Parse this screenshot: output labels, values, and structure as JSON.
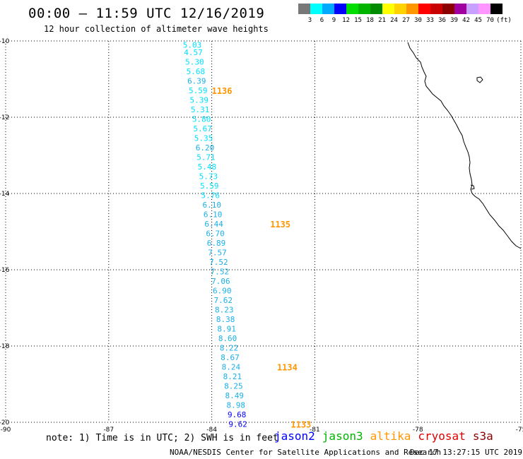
{
  "header": {
    "title": "00:00 — 11:59 UTC 12/16/2019",
    "subtitle": "12 hour collection of altimeter wave heights"
  },
  "legend": {
    "unit": "(ft)",
    "bins": [
      {
        "label": "3",
        "color": "#787878"
      },
      {
        "label": "6",
        "color": "#00ffff"
      },
      {
        "label": "9",
        "color": "#00aaff"
      },
      {
        "label": "12",
        "color": "#0000ff"
      },
      {
        "label": "15",
        "color": "#00dd00"
      },
      {
        "label": "18",
        "color": "#00b400"
      },
      {
        "label": "21",
        "color": "#008c00"
      },
      {
        "label": "24",
        "color": "#ffff00"
      },
      {
        "label": "27",
        "color": "#ffd200"
      },
      {
        "label": "30",
        "color": "#ff9600"
      },
      {
        "label": "33",
        "color": "#ff0000"
      },
      {
        "label": "36",
        "color": "#c80000"
      },
      {
        "label": "39",
        "color": "#8c0000"
      },
      {
        "label": "42",
        "color": "#a000a0"
      },
      {
        "label": "45",
        "color": "#c8a0ff"
      },
      {
        "label": "70",
        "color": "#ff96ff"
      },
      {
        "label": "",
        "color": "#000000"
      }
    ]
  },
  "map": {
    "lon_range": [
      -90,
      -75
    ],
    "lat_range": [
      -20,
      -10
    ],
    "x_ticks": [
      "-90",
      "-87",
      "-84",
      "-81",
      "-78",
      "-75"
    ],
    "y_ticks": [
      "-10",
      "-12",
      "-14",
      "-16",
      "-18",
      "-20"
    ]
  },
  "chart_data": {
    "type": "scatter",
    "series_color_cyan": "#00e0ff",
    "series_color_mid": "#1ab0e8",
    "series_color_blue": "#0000ff",
    "points": [
      {
        "lon": -84.65,
        "lat": -10.1,
        "value": "5.03",
        "color": "#00e0ff"
      },
      {
        "lon": -84.62,
        "lat": -10.3,
        "value": "4.57",
        "color": "#00e0ff"
      },
      {
        "lon": -84.58,
        "lat": -10.55,
        "value": "5.30",
        "color": "#00e0ff"
      },
      {
        "lon": -84.55,
        "lat": -10.8,
        "value": "5.68",
        "color": "#00e0ff"
      },
      {
        "lon": -84.52,
        "lat": -11.05,
        "value": "6.39",
        "color": "#1ab0e8"
      },
      {
        "lon": -84.48,
        "lat": -11.3,
        "value": "5.59",
        "color": "#00e0ff"
      },
      {
        "lon": -84.45,
        "lat": -11.55,
        "value": "5.39",
        "color": "#00e0ff"
      },
      {
        "lon": -84.42,
        "lat": -11.8,
        "value": "5.31",
        "color": "#00e0ff"
      },
      {
        "lon": -84.38,
        "lat": -12.05,
        "value": "5.80",
        "color": "#00e0ff"
      },
      {
        "lon": -84.35,
        "lat": -12.3,
        "value": "5.67",
        "color": "#00e0ff"
      },
      {
        "lon": -84.32,
        "lat": -12.55,
        "value": "5.35",
        "color": "#00e0ff"
      },
      {
        "lon": -84.28,
        "lat": -12.8,
        "value": "6.20",
        "color": "#1ab0e8"
      },
      {
        "lon": -84.25,
        "lat": -13.05,
        "value": "5.71",
        "color": "#00e0ff"
      },
      {
        "lon": -84.22,
        "lat": -13.3,
        "value": "5.48",
        "color": "#00e0ff"
      },
      {
        "lon": -84.18,
        "lat": -13.55,
        "value": "5.73",
        "color": "#00e0ff"
      },
      {
        "lon": -84.15,
        "lat": -13.8,
        "value": "5.59",
        "color": "#00e0ff"
      },
      {
        "lon": -84.12,
        "lat": -14.05,
        "value": "5.76",
        "color": "#00e0ff"
      },
      {
        "lon": -84.08,
        "lat": -14.3,
        "value": "6.10",
        "color": "#1ab0e8"
      },
      {
        "lon": -84.05,
        "lat": -14.55,
        "value": "6.10",
        "color": "#1ab0e8"
      },
      {
        "lon": -84.02,
        "lat": -14.8,
        "value": "6.44",
        "color": "#1ab0e8"
      },
      {
        "lon": -83.98,
        "lat": -15.05,
        "value": "6.70",
        "color": "#1ab0e8"
      },
      {
        "lon": -83.95,
        "lat": -15.3,
        "value": "6.89",
        "color": "#1ab0e8"
      },
      {
        "lon": -83.92,
        "lat": -15.55,
        "value": "7.57",
        "color": "#1ab0e8"
      },
      {
        "lon": -83.88,
        "lat": -15.8,
        "value": "7.52",
        "color": "#1ab0e8"
      },
      {
        "lon": -83.85,
        "lat": -16.05,
        "value": "7.52",
        "color": "#1ab0e8"
      },
      {
        "lon": -83.82,
        "lat": -16.3,
        "value": "7.06",
        "color": "#1ab0e8"
      },
      {
        "lon": -83.78,
        "lat": -16.55,
        "value": "6.90",
        "color": "#1ab0e8"
      },
      {
        "lon": -83.75,
        "lat": -16.8,
        "value": "7.62",
        "color": "#1ab0e8"
      },
      {
        "lon": -83.72,
        "lat": -17.05,
        "value": "8.23",
        "color": "#1ab0e8"
      },
      {
        "lon": -83.68,
        "lat": -17.3,
        "value": "8.38",
        "color": "#1ab0e8"
      },
      {
        "lon": -83.65,
        "lat": -17.55,
        "value": "8.91",
        "color": "#1ab0e8"
      },
      {
        "lon": -83.62,
        "lat": -17.8,
        "value": "8.60",
        "color": "#1ab0e8"
      },
      {
        "lon": -83.58,
        "lat": -18.05,
        "value": "8.22",
        "color": "#1ab0e8"
      },
      {
        "lon": -83.55,
        "lat": -18.3,
        "value": "8.67",
        "color": "#1ab0e8"
      },
      {
        "lon": -83.52,
        "lat": -18.55,
        "value": "8.24",
        "color": "#1ab0e8"
      },
      {
        "lon": -83.48,
        "lat": -18.8,
        "value": "8.21",
        "color": "#1ab0e8"
      },
      {
        "lon": -83.45,
        "lat": -19.05,
        "value": "8.25",
        "color": "#1ab0e8"
      },
      {
        "lon": -83.42,
        "lat": -19.3,
        "value": "8.49",
        "color": "#1ab0e8"
      },
      {
        "lon": -83.38,
        "lat": -19.55,
        "value": "8.98",
        "color": "#1ab0e8"
      },
      {
        "lon": -83.35,
        "lat": -19.8,
        "value": "9.68",
        "color": "#0000ff"
      },
      {
        "lon": -83.32,
        "lat": -20.05,
        "value": "9.62",
        "color": "#0000ff"
      }
    ],
    "pass_labels": [
      {
        "lon": -84.0,
        "lat": -11.3,
        "label": "1136",
        "color": "#ff9600"
      },
      {
        "lon": -82.3,
        "lat": -14.8,
        "label": "1135",
        "color": "#ff9600"
      },
      {
        "lon": -82.1,
        "lat": -18.55,
        "label": "1134",
        "color": "#ff9600"
      },
      {
        "lon": -81.7,
        "lat": -20.05,
        "label": "1133",
        "color": "#ff9600"
      }
    ]
  },
  "footer": {
    "note": "note: 1) Time is in UTC; 2) SWH is in feet",
    "satellites": [
      {
        "name": "jason2",
        "color": "#0000ff"
      },
      {
        "name": "jason3",
        "color": "#00b400"
      },
      {
        "name": "altika",
        "color": "#ff9600"
      },
      {
        "name": "cryosat",
        "color": "#e00000"
      },
      {
        "name": "s3a",
        "color": "#8c0000"
      }
    ],
    "credit": "NOAA/NESDIS Center for Satellite Applications and Research",
    "timestamp": "Dec 17 13:27:15 UTC 2019"
  }
}
